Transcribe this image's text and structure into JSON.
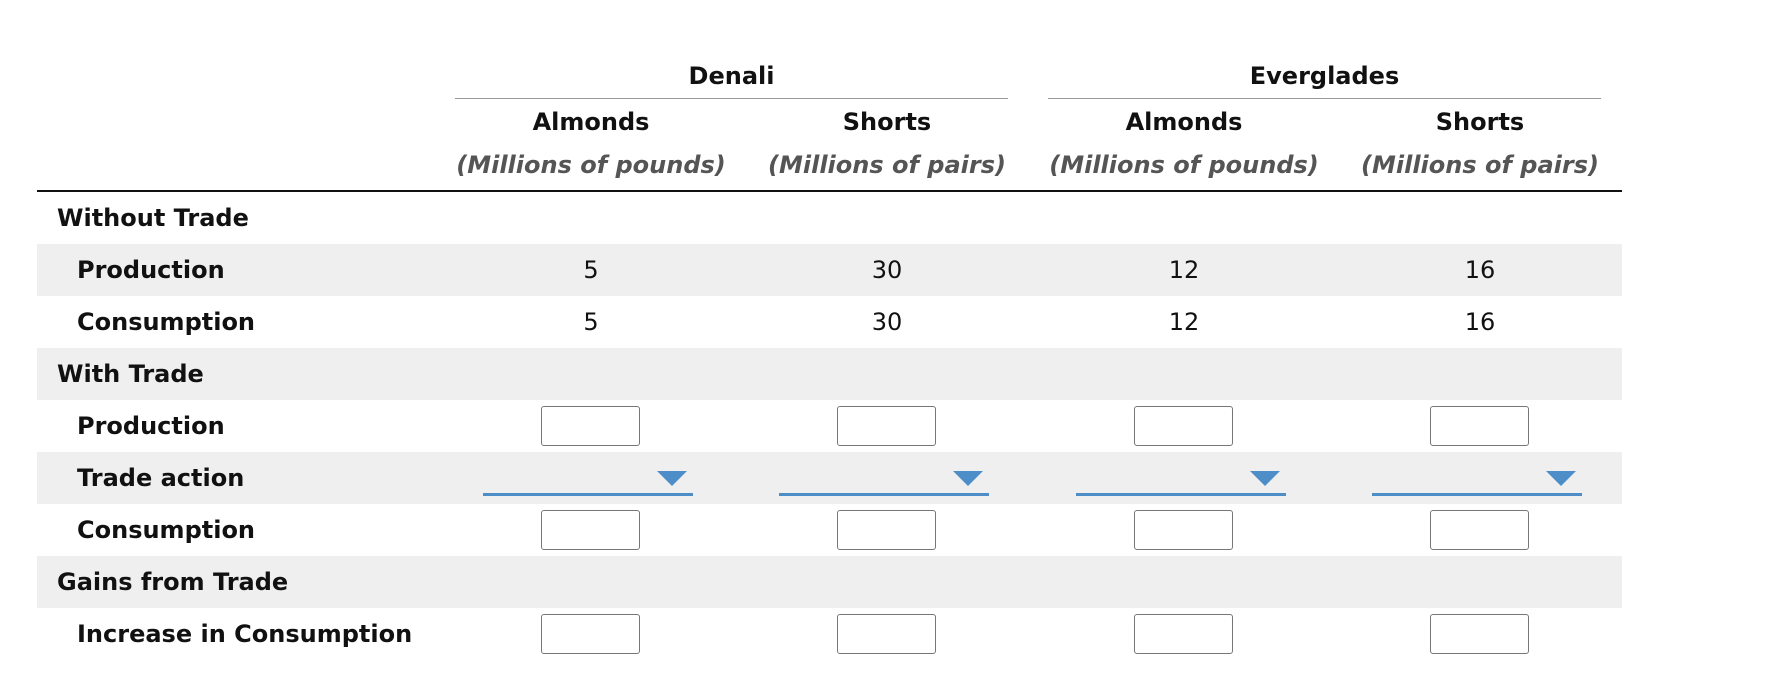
{
  "countries": [
    "Denali",
    "Everglades"
  ],
  "columns": [
    {
      "good": "Almonds",
      "unit": "(Millions of pounds)"
    },
    {
      "good": "Shorts",
      "unit": "(Millions of pairs)"
    },
    {
      "good": "Almonds",
      "unit": "(Millions of pounds)"
    },
    {
      "good": "Shorts",
      "unit": "(Millions of pairs)"
    }
  ],
  "sections": {
    "without_trade": "Without Trade",
    "with_trade": "With Trade",
    "gains": "Gains from Trade"
  },
  "rows": {
    "production": {
      "label": "Production",
      "values": [
        "5",
        "30",
        "12",
        "16"
      ]
    },
    "consumption": {
      "label": "Consumption",
      "values": [
        "5",
        "30",
        "12",
        "16"
      ]
    },
    "wt_production": {
      "label": "Production"
    },
    "trade_action": {
      "label": "Trade action"
    },
    "wt_consumption": {
      "label": "Consumption"
    },
    "increase": {
      "label": "Increase in Consumption"
    }
  },
  "colors": {
    "accent": "#4d8ec9",
    "row_shade": "#efefef"
  }
}
